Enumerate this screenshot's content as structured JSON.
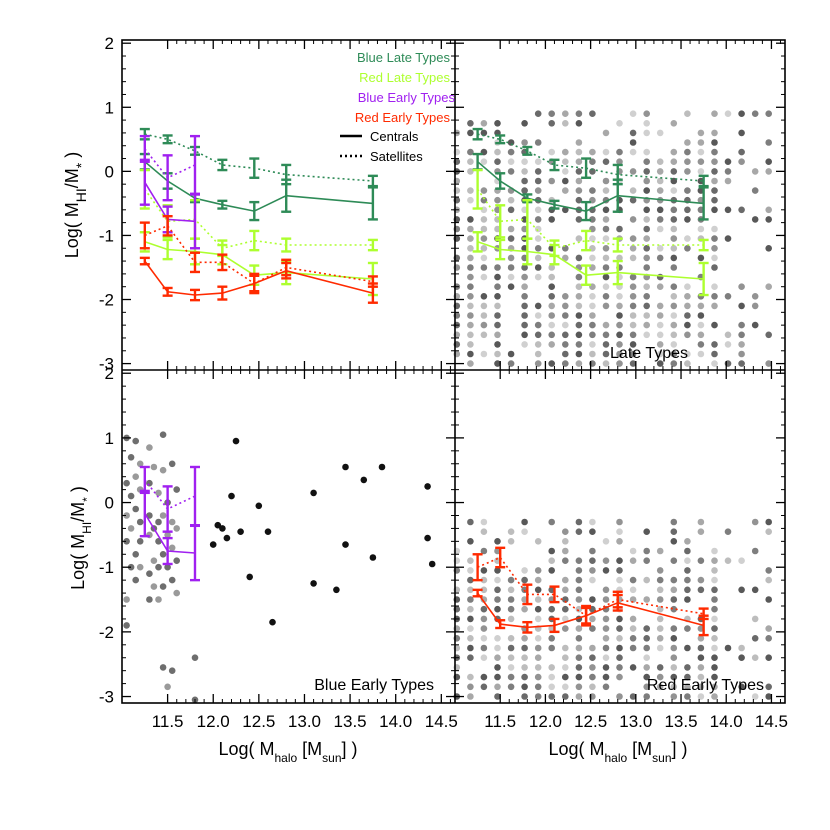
{
  "chart_data": {
    "type": "scatter",
    "layout": "2x2 panel grid, shared axes",
    "xlabel": "Log( M",
    "xlabel_sub": "halo",
    "xlabel_bracket": " [M",
    "xlabel_sub2": "sun",
    "xlabel_end": "] )",
    "ylabel": "Log( M",
    "ylabel_sub": "HI",
    "ylabel_mid": "/M",
    "ylabel_sub2": "*",
    "ylabel_end": " )",
    "xlim": [
      11.0,
      14.65
    ],
    "ylim": [
      -3.1,
      2.05
    ],
    "xticks": [
      "11.5",
      "12.0",
      "12.5",
      "13.0",
      "13.5",
      "14.0",
      "14.5"
    ],
    "xtick_values": [
      11.5,
      12.0,
      12.5,
      13.0,
      13.5,
      14.0,
      14.5
    ],
    "yticks": [
      "2",
      "1",
      "0",
      "-1",
      "-2",
      "-3"
    ],
    "ytick_values": [
      2,
      1,
      0,
      -1,
      -2,
      -3
    ],
    "colors": {
      "blue_late": "#2e8b57",
      "red_late": "#adff2f",
      "blue_early": "#a020f0",
      "red_early": "#ff2a00"
    },
    "legend": {
      "placement": "top-right of top-left panel",
      "entries": [
        {
          "label": "Blue Late Types",
          "color": "#2e8b57"
        },
        {
          "label": "Red Late Types",
          "color": "#adff2f"
        },
        {
          "label": "Blue Early Types",
          "color": "#a020f0"
        },
        {
          "label": "Red Early Types",
          "color": "#ff2a00"
        },
        {
          "label": "Centrals",
          "style": "solid"
        },
        {
          "label": "Satellites",
          "style": "dotted"
        }
      ]
    },
    "panels": [
      {
        "id": "all",
        "label": "",
        "series": [
          {
            "key": "blue_late",
            "style": "solid",
            "x": [
              11.25,
              11.5,
              11.8,
              12.1,
              12.45,
              12.8,
              13.75
            ],
            "y": [
              0.15,
              -0.15,
              -0.42,
              -0.52,
              -0.62,
              -0.38,
              -0.5
            ],
            "err": [
              0.12,
              0.12,
              0.06,
              0.06,
              0.14,
              0.25,
              0.25
            ]
          },
          {
            "key": "blue_late",
            "style": "dotted",
            "x": [
              11.25,
              11.5,
              11.8,
              12.1,
              12.45,
              12.8,
              13.75
            ],
            "y": [
              0.58,
              0.5,
              0.32,
              0.1,
              0.05,
              -0.05,
              -0.15
            ],
            "err": [
              0.08,
              0.06,
              0.06,
              0.08,
              0.15,
              0.15,
              0.08
            ]
          },
          {
            "key": "red_late",
            "style": "solid",
            "x": [
              11.25,
              11.5,
              11.8,
              12.1,
              12.45,
              12.8,
              13.75
            ],
            "y": [
              -1.1,
              -1.22,
              -1.25,
              -1.3,
              -1.62,
              -1.58,
              -1.68
            ],
            "err": [
              0.15,
              0.15,
              0.2,
              0.15,
              0.15,
              0.18,
              0.25
            ]
          },
          {
            "key": "red_late",
            "style": "dotted",
            "x": [
              11.25,
              11.5,
              11.8,
              12.1,
              12.45,
              12.8,
              13.75
            ],
            "y": [
              -0.28,
              -0.78,
              -0.75,
              -1.2,
              -1.08,
              -1.15,
              -1.15
            ],
            "err": [
              0.3,
              0.25,
              0.3,
              0.12,
              0.15,
              0.1,
              0.08
            ]
          },
          {
            "key": "blue_early",
            "style": "solid",
            "x": [
              11.25,
              11.5,
              11.8
            ],
            "y": [
              -0.17,
              -0.75,
              -0.78
            ],
            "err": [
              0.35,
              0.2,
              0.42
            ]
          },
          {
            "key": "blue_early",
            "style": "dotted",
            "x": [
              11.25,
              11.5,
              11.8
            ],
            "y": [
              0.35,
              -0.1,
              0.1
            ],
            "err": [
              0.2,
              0.35,
              0.45
            ]
          },
          {
            "key": "red_early",
            "style": "solid",
            "x": [
              11.25,
              11.5,
              11.8,
              12.1,
              12.45,
              12.8,
              13.75
            ],
            "y": [
              -1.4,
              -1.88,
              -1.93,
              -1.9,
              -1.75,
              -1.55,
              -1.9
            ],
            "err": [
              0.05,
              0.06,
              0.08,
              0.1,
              0.15,
              0.12,
              0.15
            ]
          },
          {
            "key": "red_early",
            "style": "dotted",
            "x": [
              11.25,
              11.5,
              11.8,
              12.1,
              12.45,
              12.8,
              13.75
            ],
            "y": [
              -1.0,
              -0.85,
              -1.42,
              -1.42,
              -1.75,
              -1.5,
              -1.72
            ],
            "err": [
              0.2,
              0.15,
              0.15,
              0.12,
              0.12,
              0.12,
              0.08
            ]
          }
        ]
      },
      {
        "id": "late",
        "label": "Late Types",
        "series": [
          {
            "key": "blue_late",
            "style": "solid",
            "x": [
              11.25,
              11.5,
              11.8,
              12.1,
              12.45,
              12.8,
              13.75
            ],
            "y": [
              0.15,
              -0.15,
              -0.42,
              -0.52,
              -0.62,
              -0.38,
              -0.5
            ],
            "err": [
              0.12,
              0.12,
              0.06,
              0.06,
              0.14,
              0.25,
              0.25
            ]
          },
          {
            "key": "blue_late",
            "style": "dotted",
            "x": [
              11.25,
              11.5,
              11.8,
              12.1,
              12.45,
              12.8,
              13.75
            ],
            "y": [
              0.58,
              0.5,
              0.32,
              0.1,
              0.05,
              -0.05,
              -0.15
            ],
            "err": [
              0.08,
              0.06,
              0.06,
              0.08,
              0.15,
              0.15,
              0.08
            ]
          },
          {
            "key": "red_late",
            "style": "solid",
            "x": [
              11.25,
              11.5,
              11.8,
              12.1,
              12.45,
              12.8,
              13.75
            ],
            "y": [
              -1.1,
              -1.22,
              -1.25,
              -1.3,
              -1.62,
              -1.58,
              -1.68
            ],
            "err": [
              0.15,
              0.15,
              0.2,
              0.15,
              0.15,
              0.18,
              0.25
            ]
          },
          {
            "key": "red_late",
            "style": "dotted",
            "x": [
              11.25,
              11.5,
              11.8,
              12.1,
              12.45,
              12.8,
              13.75
            ],
            "y": [
              -0.28,
              -0.78,
              -0.75,
              -1.2,
              -1.08,
              -1.15,
              -1.15
            ],
            "err": [
              0.3,
              0.25,
              0.3,
              0.12,
              0.15,
              0.1,
              0.08
            ]
          }
        ],
        "background": "dense grey points on a 0.15 dex grid, x 11.0–14.5, y -3.0–1.0"
      },
      {
        "id": "blue-early",
        "label": "Blue Early Types",
        "series": [
          {
            "key": "blue_early",
            "style": "solid",
            "x": [
              11.25,
              11.5,
              11.8
            ],
            "y": [
              -0.17,
              -0.75,
              -0.78
            ],
            "err": [
              0.35,
              0.2,
              0.42
            ]
          },
          {
            "key": "blue_early",
            "style": "dotted",
            "x": [
              11.25,
              11.5,
              11.8
            ],
            "y": [
              0.35,
              -0.1,
              0.1
            ],
            "err": [
              0.2,
              0.35,
              0.45
            ]
          }
        ],
        "points": [
          [
            11.05,
            1.0
          ],
          [
            11.05,
            0.3
          ],
          [
            11.05,
            -0.2
          ],
          [
            11.05,
            -0.6
          ],
          [
            11.05,
            -1.5
          ],
          [
            11.05,
            -1.9
          ],
          [
            11.1,
            0.7
          ],
          [
            11.1,
            0.1
          ],
          [
            11.1,
            -0.4
          ],
          [
            11.1,
            -1.0
          ],
          [
            11.15,
            0.95
          ],
          [
            11.15,
            0.4
          ],
          [
            11.15,
            -0.1
          ],
          [
            11.15,
            -0.8
          ],
          [
            11.15,
            -1.2
          ],
          [
            11.2,
            0.6
          ],
          [
            11.2,
            0.2
          ],
          [
            11.2,
            -0.3
          ],
          [
            11.2,
            -0.6
          ],
          [
            11.2,
            -1.0
          ],
          [
            11.3,
            0.85
          ],
          [
            11.3,
            0.3
          ],
          [
            11.3,
            -0.2
          ],
          [
            11.3,
            -0.5
          ],
          [
            11.3,
            -1.1
          ],
          [
            11.3,
            -1.5
          ],
          [
            11.35,
            0.55
          ],
          [
            11.35,
            -0.4
          ],
          [
            11.35,
            -0.9
          ],
          [
            11.35,
            -1.3
          ],
          [
            11.4,
            0.15
          ],
          [
            11.4,
            -0.3
          ],
          [
            11.4,
            -0.6
          ],
          [
            11.4,
            -1.0
          ],
          [
            11.4,
            -1.5
          ],
          [
            11.45,
            1.05
          ],
          [
            11.45,
            0.5
          ],
          [
            11.45,
            -0.2
          ],
          [
            11.45,
            -0.8
          ],
          [
            11.45,
            -1.3
          ],
          [
            11.5,
            0.0
          ],
          [
            11.5,
            -0.5
          ],
          [
            11.5,
            -1.0
          ],
          [
            11.5,
            -2.85
          ],
          [
            11.55,
            0.6
          ],
          [
            11.55,
            -0.3
          ],
          [
            11.55,
            -0.7
          ],
          [
            11.55,
            -1.2
          ],
          [
            11.55,
            -2.6
          ],
          [
            11.6,
            0.2
          ],
          [
            11.6,
            -0.4
          ],
          [
            11.6,
            -0.9
          ],
          [
            11.6,
            -1.4
          ],
          [
            11.45,
            -2.55
          ],
          [
            11.8,
            -2.4
          ],
          [
            11.8,
            -3.05
          ],
          [
            12.0,
            -0.65
          ],
          [
            12.05,
            -0.35
          ],
          [
            12.1,
            -0.4
          ],
          [
            12.15,
            -0.55
          ],
          [
            12.2,
            0.1
          ],
          [
            12.25,
            0.95
          ],
          [
            12.3,
            -0.45
          ],
          [
            12.4,
            -1.15
          ],
          [
            12.5,
            -0.05
          ],
          [
            12.6,
            -0.45
          ],
          [
            12.65,
            -1.85
          ],
          [
            13.1,
            0.15
          ],
          [
            13.1,
            -1.25
          ],
          [
            13.35,
            -1.35
          ],
          [
            13.45,
            0.55
          ],
          [
            13.45,
            -0.65
          ],
          [
            13.65,
            0.35
          ],
          [
            13.75,
            -0.85
          ],
          [
            13.85,
            0.55
          ],
          [
            14.35,
            0.25
          ],
          [
            14.35,
            -0.55
          ],
          [
            14.4,
            -0.95
          ]
        ]
      },
      {
        "id": "red-early",
        "label": "Red Early Types",
        "series": [
          {
            "key": "red_early",
            "style": "solid",
            "x": [
              11.25,
              11.5,
              11.8,
              12.1,
              12.45,
              12.8,
              13.75
            ],
            "y": [
              -1.4,
              -1.88,
              -1.93,
              -1.9,
              -1.75,
              -1.55,
              -1.9
            ],
            "err": [
              0.05,
              0.06,
              0.08,
              0.1,
              0.15,
              0.12,
              0.15
            ]
          },
          {
            "key": "red_early",
            "style": "dotted",
            "x": [
              11.25,
              11.5,
              11.8,
              12.1,
              12.45,
              12.8,
              13.75
            ],
            "y": [
              -1.0,
              -0.85,
              -1.42,
              -1.42,
              -1.75,
              -1.5,
              -1.72
            ],
            "err": [
              0.2,
              0.15,
              0.15,
              0.12,
              0.12,
              0.12,
              0.08
            ]
          }
        ],
        "background": "dense grey points on a 0.15 dex grid, x 11.0–14.5, y -3.0–-0.3"
      }
    ]
  }
}
